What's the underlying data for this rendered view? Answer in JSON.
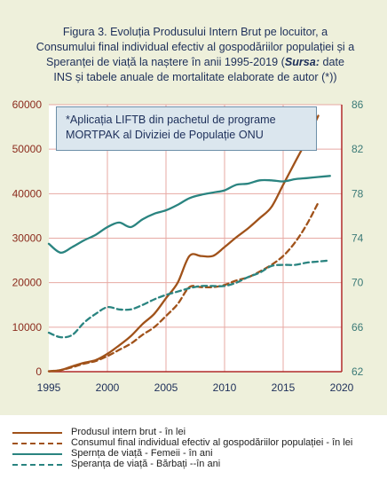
{
  "figure": {
    "title_main": "Figura 3. Evoluția Produsului  Intern Brut pe locuitor, a Consumului  final individual  efectiv al gospodăriilor populației  și a Speranței de viață la naștere în anii 1995-2019 (",
    "title_source_label": "Sursa:",
    "title_source_text": " date INS și tabele anuale de mortalitate elaborate de autor (*))",
    "note": "*Aplicația LIFTB din pachetul de programe MORTPAK al Diviziei de Populație  ONU"
  },
  "colors": {
    "frame_bg": "#eef0db",
    "plot_bg": "#ffffff",
    "grid": "#e7a9a3",
    "axis": "#b02a2a",
    "left_tick_text": "#8b2a1c",
    "right_tick_text": "#3b7a77",
    "x_tick_text": "#1d2f5a"
  },
  "chart_data": {
    "type": "line",
    "x": [
      1995,
      1996,
      1997,
      1998,
      1999,
      2000,
      2001,
      2002,
      2003,
      2004,
      2005,
      2006,
      2007,
      2008,
      2009,
      2010,
      2011,
      2012,
      2013,
      2014,
      2015,
      2016,
      2017,
      2018,
      2019
    ],
    "xlim": [
      1995,
      2020
    ],
    "x_ticks": [
      "1995",
      "2000",
      "2005",
      "2010",
      "2015",
      "2020"
    ],
    "ylim_left": [
      0,
      60000
    ],
    "y_ticks_left": [
      "0",
      "10000",
      "20000",
      "30000",
      "40000",
      "50000",
      "60000"
    ],
    "ylim_right": [
      62,
      86
    ],
    "y_ticks_right": [
      "62",
      "66",
      "70",
      "74",
      "78",
      "82",
      "86"
    ],
    "grid": true,
    "legend_position": "bottom",
    "series": [
      {
        "name": "Produsul intern brut - în lei",
        "axis": "left",
        "color": "#a0521a",
        "style": "solid",
        "values": [
          100,
          350,
          1200,
          2000,
          2600,
          4000,
          5900,
          8000,
          10700,
          13000,
          16500,
          20000,
          26000,
          26000,
          26000,
          28000,
          30200,
          32200,
          34500,
          37000,
          42000,
          47000,
          52000,
          57500,
          null
        ]
      },
      {
        "name": "Consumul final individual efectiv al gospodăriilor populației - în lei",
        "axis": "left",
        "color": "#a0521a",
        "style": "dashed",
        "values": [
          100,
          350,
          1000,
          1800,
          2400,
          3500,
          4900,
          6300,
          8300,
          10000,
          12500,
          15200,
          19000,
          19000,
          19000,
          19500,
          20500,
          21200,
          22500,
          24000,
          26000,
          29000,
          33000,
          38000,
          null
        ]
      },
      {
        "name": "Spernța de viață - Femeii - în ani",
        "axis": "right",
        "color": "#2a8480",
        "style": "solid",
        "values": [
          73.5,
          72.7,
          73.2,
          73.8,
          74.3,
          75.0,
          75.4,
          75.0,
          75.7,
          76.2,
          76.5,
          77.0,
          77.6,
          77.9,
          78.1,
          78.3,
          78.8,
          78.9,
          79.2,
          79.2,
          79.1,
          79.3,
          79.4,
          79.5,
          79.6
        ]
      },
      {
        "name": "Speranța de viață - Bărbați --în ani",
        "axis": "right",
        "color": "#2a8480",
        "style": "dashed",
        "values": [
          65.5,
          65.1,
          65.3,
          66.4,
          67.2,
          67.8,
          67.6,
          67.6,
          68.0,
          68.5,
          68.9,
          69.2,
          69.5,
          69.7,
          69.7,
          69.7,
          70.0,
          70.5,
          70.9,
          71.5,
          71.6,
          71.6,
          71.8,
          71.9,
          72.0
        ]
      }
    ]
  }
}
